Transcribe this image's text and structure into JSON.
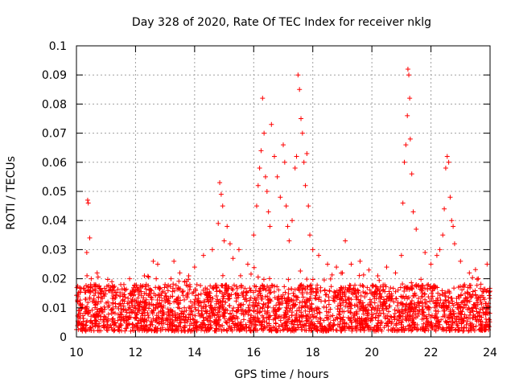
{
  "chart_data": {
    "type": "scatter",
    "title": "Day 328 of 2020, Rate Of TEC Index for receiver nklg",
    "xlabel": "GPS time / hours",
    "ylabel": "ROTI / TECUs",
    "xlim": [
      10,
      24
    ],
    "ylim": [
      0,
      0.1
    ],
    "x_ticks": [
      "10",
      "12",
      "14",
      "16",
      "18",
      "20",
      "22",
      "24"
    ],
    "y_ticks": [
      "0",
      "0.01",
      "0.02",
      "0.03",
      "0.04",
      "0.05",
      "0.06",
      "0.07",
      "0.08",
      "0.09",
      "0.1"
    ],
    "grid": true,
    "marker": "+",
    "color": "#ff0000",
    "series": [
      {
        "name": "ROTI",
        "x": [
          10.05,
          10.1,
          10.2,
          10.3,
          10.35,
          10.38,
          10.4,
          10.45,
          10.5,
          10.6,
          10.7,
          10.8,
          11.0,
          11.2,
          11.5,
          11.8,
          12.0,
          12.3,
          12.6,
          12.7,
          12.75,
          13.0,
          13.2,
          13.3,
          13.5,
          13.8,
          14.0,
          14.3,
          14.6,
          14.8,
          14.85,
          14.9,
          14.95,
          15.0,
          15.1,
          15.2,
          15.3,
          15.5,
          15.8,
          16.0,
          16.1,
          16.15,
          16.2,
          16.25,
          16.3,
          16.35,
          16.4,
          16.45,
          16.5,
          16.55,
          16.6,
          16.7,
          16.8,
          16.9,
          17.0,
          17.05,
          17.1,
          17.15,
          17.2,
          17.3,
          17.4,
          17.45,
          17.5,
          17.55,
          17.6,
          17.65,
          17.7,
          17.75,
          17.8,
          17.85,
          17.9,
          18.0,
          18.2,
          18.5,
          18.8,
          19.0,
          19.1,
          19.3,
          19.6,
          19.9,
          20.2,
          20.5,
          20.8,
          21.0,
          21.05,
          21.1,
          21.15,
          21.2,
          21.22,
          21.25,
          21.28,
          21.3,
          21.35,
          21.4,
          21.5,
          21.8,
          22.0,
          22.2,
          22.3,
          22.4,
          22.45,
          22.5,
          22.55,
          22.6,
          22.65,
          22.7,
          22.75,
          22.8,
          23.0,
          23.3,
          23.6,
          23.9
        ],
        "y": [
          0.012,
          0.009,
          0.011,
          0.013,
          0.029,
          0.047,
          0.046,
          0.034,
          0.02,
          0.018,
          0.022,
          0.015,
          0.016,
          0.019,
          0.018,
          0.02,
          0.016,
          0.021,
          0.026,
          0.02,
          0.025,
          0.018,
          0.02,
          0.026,
          0.022,
          0.021,
          0.024,
          0.028,
          0.03,
          0.039,
          0.053,
          0.049,
          0.045,
          0.033,
          0.038,
          0.032,
          0.027,
          0.03,
          0.025,
          0.035,
          0.045,
          0.052,
          0.058,
          0.064,
          0.082,
          0.07,
          0.055,
          0.05,
          0.043,
          0.038,
          0.073,
          0.062,
          0.055,
          0.048,
          0.066,
          0.06,
          0.045,
          0.038,
          0.033,
          0.04,
          0.058,
          0.062,
          0.09,
          0.085,
          0.075,
          0.07,
          0.06,
          0.052,
          0.063,
          0.045,
          0.035,
          0.03,
          0.028,
          0.025,
          0.024,
          0.022,
          0.033,
          0.025,
          0.026,
          0.023,
          0.021,
          0.024,
          0.022,
          0.028,
          0.046,
          0.06,
          0.066,
          0.076,
          0.092,
          0.09,
          0.082,
          0.068,
          0.056,
          0.043,
          0.037,
          0.029,
          0.025,
          0.028,
          0.03,
          0.035,
          0.044,
          0.058,
          0.062,
          0.06,
          0.048,
          0.04,
          0.038,
          0.032,
          0.026,
          0.022,
          0.02,
          0.025
        ]
      }
    ],
    "baseline_band": {
      "x_range": [
        10.0,
        24.0
      ],
      "y_range": [
        0.002,
        0.018
      ]
    }
  }
}
